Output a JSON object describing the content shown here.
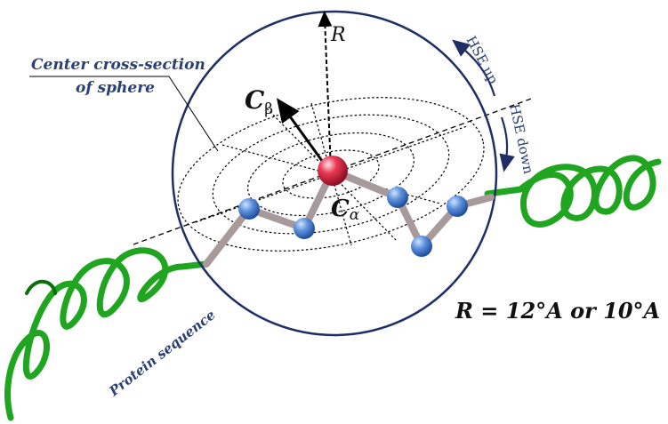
{
  "labels": {
    "center_cross_section_line1": "Center cross-section",
    "center_cross_section_line2": "of sphere",
    "radius": "R",
    "c_beta_main": "C",
    "c_beta_sub": "β",
    "c_alpha_main": "C",
    "c_alpha_sub": "α",
    "hse_up": "HSE up",
    "hse_down": "HSE down",
    "radius_value": "R = 12°A or 10°A",
    "protein_sequence": "Protein sequence"
  },
  "colors": {
    "sphere_outline": "#1f2f66",
    "label_blue": "#2a3f74",
    "helix_green": "#1fa51f",
    "helix_dark": "#0b6e0b",
    "backbone": "#a89a9a",
    "atom_blue": "#4a7fd0",
    "atom_red": "#d8203a"
  }
}
